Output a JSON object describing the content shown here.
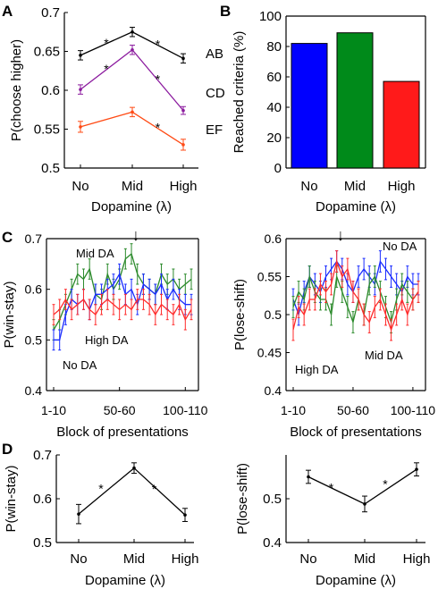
{
  "panel_letters": [
    "A",
    "B",
    "C",
    "D"
  ],
  "colors": {
    "AB": "#000000",
    "CD": "#8b1a9e",
    "EF": "#ff4a14",
    "bar_no": "#0000ff",
    "bar_mid": "#008a1a",
    "bar_high": "#ff1a1a",
    "no_da": "#1a2cff",
    "mid_da": "#2b8a2b",
    "high_da": "#ff2b2b"
  },
  "chart_data": [
    {
      "id": "A",
      "type": "line",
      "categories": [
        "No",
        "Mid",
        "High"
      ],
      "xlabel": "Dopamine (λ)",
      "ylabel": "P(choose higher)",
      "ylim": [
        0.5,
        0.7
      ],
      "yticks": [
        "0.5",
        "0.55",
        "0.6",
        "0.65",
        "0.7"
      ],
      "series": [
        {
          "name": "AB",
          "values": [
            0.645,
            0.675,
            0.641
          ],
          "err": [
            0.006,
            0.006,
            0.006
          ]
        },
        {
          "name": "CD",
          "values": [
            0.601,
            0.652,
            0.574
          ],
          "err": [
            0.006,
            0.006,
            0.005
          ]
        },
        {
          "name": "EF",
          "values": [
            0.553,
            0.572,
            0.53
          ],
          "err": [
            0.007,
            0.006,
            0.007
          ]
        }
      ],
      "significance_marks": [
        {
          "text": "*",
          "series": "AB",
          "between": [
            "No",
            "Mid"
          ]
        },
        {
          "text": "*",
          "series": "AB",
          "between": [
            "Mid",
            "High"
          ]
        },
        {
          "text": "*",
          "series": "CD",
          "between": [
            "No",
            "Mid"
          ]
        },
        {
          "text": "*",
          "series": "CD",
          "between": [
            "Mid",
            "High"
          ]
        },
        {
          "text": "*",
          "series": "EF",
          "between": [
            "Mid",
            "High"
          ]
        }
      ]
    },
    {
      "id": "B",
      "type": "bar",
      "categories": [
        "No",
        "Mid",
        "High"
      ],
      "values": [
        82,
        89,
        57
      ],
      "xlabel": "Dopamine (λ)",
      "ylabel": "Reached criteria (%)",
      "ylim": [
        0,
        100
      ],
      "yticks": [
        "0",
        "20",
        "40",
        "60",
        "80",
        "100"
      ]
    },
    {
      "id": "C-left",
      "type": "line",
      "xlabel": "Block of presentations",
      "ylabel": "P(win-stay)",
      "ylim": [
        0.4,
        0.7
      ],
      "yticks": [
        "0.4",
        "0.5",
        "0.6",
        "0.7"
      ],
      "xticks": [
        "1-10",
        "50-60",
        "100-110"
      ],
      "arrow_label": "↓",
      "series": [
        {
          "name": "Mid DA",
          "values": [
            0.52,
            0.54,
            0.57,
            0.6,
            0.63,
            0.62,
            0.64,
            0.59,
            0.58,
            0.63,
            0.6,
            0.62,
            0.66,
            0.67,
            0.63,
            0.61,
            0.6,
            0.59,
            0.63,
            0.61,
            0.62,
            0.6,
            0.61,
            0.62
          ]
        },
        {
          "name": "No DA",
          "values": [
            0.5,
            0.5,
            0.55,
            0.58,
            0.57,
            0.58,
            0.56,
            0.59,
            0.59,
            0.6,
            0.61,
            0.63,
            0.59,
            0.6,
            0.57,
            0.61,
            0.6,
            0.59,
            0.61,
            0.58,
            0.6,
            0.58,
            0.57,
            0.57
          ]
        },
        {
          "name": "High DA",
          "values": [
            0.55,
            0.56,
            0.58,
            0.56,
            0.57,
            0.58,
            0.56,
            0.55,
            0.57,
            0.58,
            0.57,
            0.56,
            0.57,
            0.56,
            0.58,
            0.58,
            0.57,
            0.55,
            0.57,
            0.56,
            0.55,
            0.57,
            0.54,
            0.56
          ]
        }
      ]
    },
    {
      "id": "C-right",
      "type": "line",
      "xlabel": "Block of presentations",
      "ylabel": "P(lose-shift)",
      "ylim": [
        0.4,
        0.6
      ],
      "yticks": [
        "0.4",
        "0.45",
        "0.5",
        "0.55",
        "0.6"
      ],
      "xticks": [
        "1-10",
        "50-60",
        "100-110"
      ],
      "arrow_label": "↓",
      "series": [
        {
          "name": "No DA",
          "values": [
            0.52,
            0.5,
            0.53,
            0.55,
            0.54,
            0.53,
            0.55,
            0.56,
            0.57,
            0.56,
            0.54,
            0.53,
            0.55,
            0.56,
            0.55,
            0.54,
            0.57,
            0.56,
            0.55,
            0.54,
            0.53,
            0.55,
            0.54,
            0.54
          ]
        },
        {
          "name": "Mid DA",
          "values": [
            0.51,
            0.53,
            0.52,
            0.55,
            0.53,
            0.52,
            0.52,
            0.5,
            0.55,
            0.53,
            0.51,
            0.49,
            0.52,
            0.5,
            0.54,
            0.55,
            0.53,
            0.51,
            0.49,
            0.52,
            0.54,
            0.53,
            0.52,
            0.53
          ]
        },
        {
          "name": "High DA",
          "values": [
            0.48,
            0.51,
            0.5,
            0.52,
            0.52,
            0.54,
            0.53,
            0.54,
            0.57,
            0.55,
            0.56,
            0.53,
            0.52,
            0.5,
            0.49,
            0.51,
            0.52,
            0.5,
            0.48,
            0.5,
            0.52,
            0.5,
            0.52,
            0.53
          ]
        }
      ]
    },
    {
      "id": "D-left",
      "type": "line",
      "categories": [
        "No",
        "Mid",
        "High"
      ],
      "xlabel": "Dopamine (λ)",
      "ylabel": "P(win-stay)",
      "ylim": [
        0.5,
        0.7
      ],
      "yticks": [
        "0.5",
        "0.6",
        "0.7"
      ],
      "series": [
        {
          "values": [
            0.565,
            0.67,
            0.563
          ],
          "err": [
            0.022,
            0.012,
            0.015
          ]
        }
      ],
      "significance_marks": [
        "*",
        "*"
      ]
    },
    {
      "id": "D-right",
      "type": "line",
      "categories": [
        "No",
        "Mid",
        "High"
      ],
      "xlabel": "Dopamine (λ)",
      "ylabel": "P(lose-shift)",
      "ylim": [
        0.4,
        0.6
      ],
      "yticks": [
        "0.4",
        "0.5"
      ],
      "series": [
        {
          "values": [
            0.55,
            0.488,
            0.567
          ],
          "err": [
            0.015,
            0.018,
            0.015
          ]
        }
      ],
      "significance_marks": [
        "*",
        "*"
      ]
    }
  ]
}
